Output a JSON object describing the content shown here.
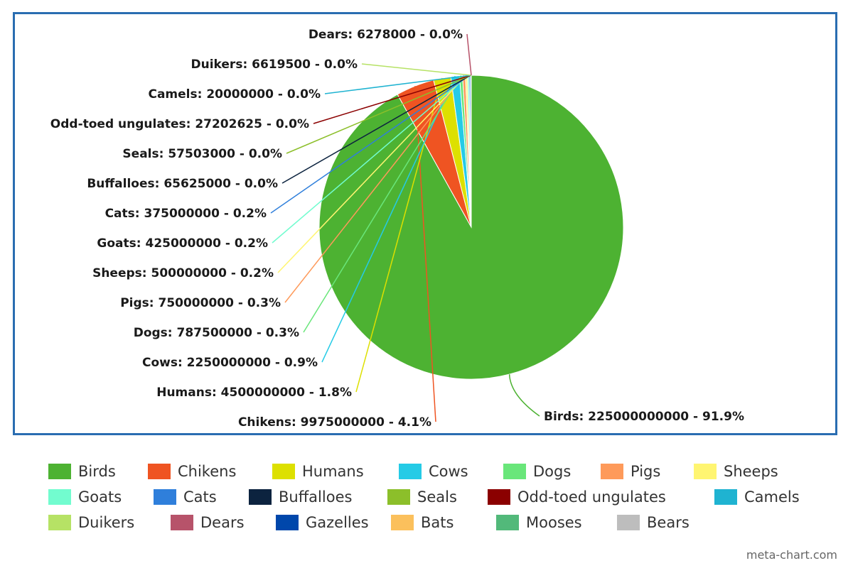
{
  "chart_data": {
    "type": "pie",
    "title": "",
    "slices": [
      {
        "name": "Birds",
        "value": 225000000000,
        "percent": "91.9%",
        "color": "#4db232"
      },
      {
        "name": "Chikens",
        "value": 9975000000,
        "percent": "4.1%",
        "color": "#ef5422"
      },
      {
        "name": "Humans",
        "value": 4500000000,
        "percent": "1.8%",
        "color": "#dde000"
      },
      {
        "name": "Cows",
        "value": 2250000000,
        "percent": "0.9%",
        "color": "#25cbe6"
      },
      {
        "name": "Dogs",
        "value": 787500000,
        "percent": "0.3%",
        "color": "#69e67a"
      },
      {
        "name": "Pigs",
        "value": 750000000,
        "percent": "0.3%",
        "color": "#fe9a5a"
      },
      {
        "name": "Sheeps",
        "value": 500000000,
        "percent": "0.2%",
        "color": "#fff571"
      },
      {
        "name": "Goats",
        "value": 425000000,
        "percent": "0.2%",
        "color": "#72fccf"
      },
      {
        "name": "Cats",
        "value": 375000000,
        "percent": "0.2%",
        "color": "#2f7fdb"
      },
      {
        "name": "Buffalloes",
        "value": 65625000,
        "percent": "0.0%",
        "color": "#0c233f"
      },
      {
        "name": "Seals",
        "value": 57503000,
        "percent": "0.0%",
        "color": "#8cbf2a"
      },
      {
        "name": "Odd-toed ungulates",
        "value": 27202625,
        "percent": "0.0%",
        "color": "#8b0000"
      },
      {
        "name": "Camels",
        "value": 20000000,
        "percent": "0.0%",
        "color": "#1fb3d1"
      },
      {
        "name": "Duikers",
        "value": 6619500,
        "percent": "0.0%",
        "color": "#b6e265"
      },
      {
        "name": "Dears",
        "value": 6278000,
        "percent": "0.0%",
        "color": "#b7536a"
      },
      {
        "name": "Gazelles",
        "value": 0,
        "percent": "",
        "color": "#0047ab"
      },
      {
        "name": "Bats",
        "value": 0,
        "percent": "",
        "color": "#fbc05c"
      },
      {
        "name": "Mooses",
        "value": 0,
        "percent": "",
        "color": "#52b97a"
      },
      {
        "name": "Bears",
        "value": 0,
        "percent": "",
        "color": "#bdbdbd"
      }
    ],
    "labels": [
      {
        "text": "Birds: 225000000000 - 91.9%"
      },
      {
        "text": "Chikens: 9975000000 - 4.1%"
      },
      {
        "text": "Humans: 4500000000 - 1.8%"
      },
      {
        "text": "Cows: 2250000000 - 0.9%"
      },
      {
        "text": "Dogs: 787500000 - 0.3%"
      },
      {
        "text": "Pigs: 750000000 - 0.3%"
      },
      {
        "text": "Sheeps: 500000000 - 0.2%"
      },
      {
        "text": "Goats: 425000000 - 0.2%"
      },
      {
        "text": "Cats: 375000000 - 0.2%"
      },
      {
        "text": "Buffalloes: 65625000 - 0.0%"
      },
      {
        "text": "Seals: 57503000 - 0.0%"
      },
      {
        "text": "Odd-toed ungulates: 27202625 - 0.0%"
      },
      {
        "text": "Camels: 20000000 - 0.0%"
      },
      {
        "text": "Duikers: 6619500 - 0.0%"
      },
      {
        "text": "Dears: 6278000 - 0.0%"
      }
    ],
    "legend_position": "bottom",
    "legend": [
      "Birds",
      "Chikens",
      "Humans",
      "Cows",
      "Dogs",
      "Pigs",
      "Sheeps",
      "Goats",
      "Cats",
      "Buffalloes",
      "Seals",
      "Odd-toed ungulates",
      "Camels",
      "Duikers",
      "Dears",
      "Gazelles",
      "Bats",
      "Mooses",
      "Bears"
    ]
  },
  "credit": "meta-chart.com"
}
